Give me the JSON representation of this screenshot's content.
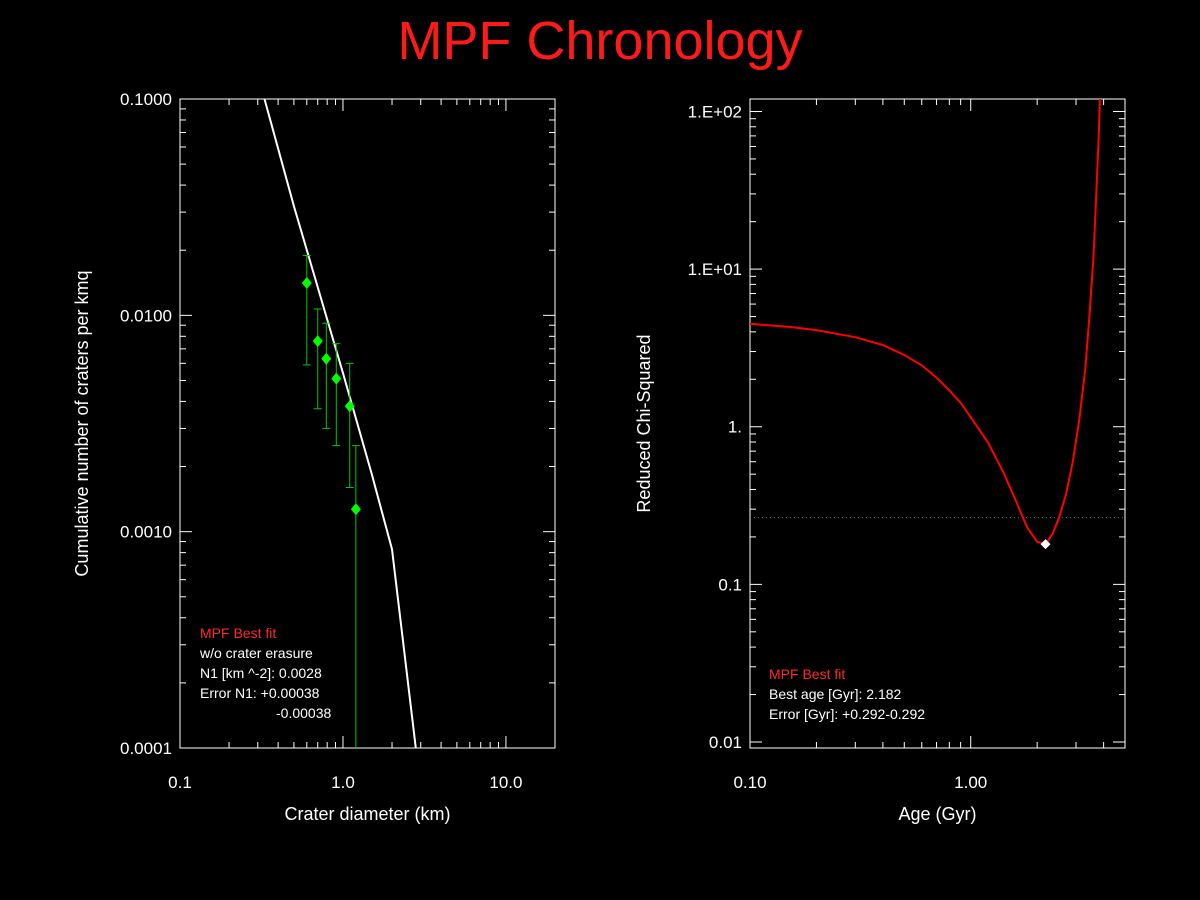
{
  "title": "MPF Chronology",
  "colors": {
    "background": "#000000",
    "title": "#ff1a1a",
    "fit_label": "#ff2a2a",
    "data_points": "#00ff00",
    "error_bars": "#00c800",
    "fit_line": "#ffffff",
    "chi_curve": "#ff0000",
    "minimum_marker": "#ffffff",
    "threshold_line": "#5a7a5a"
  },
  "chart_data": [
    {
      "type": "scatter",
      "xlabel": "Crater diameter (km)",
      "ylabel": "Cumulative number of craters per kmq",
      "x_scale": "log",
      "y_scale": "log",
      "xlim": [
        0.1,
        20
      ],
      "ylim": [
        0.0001,
        0.1
      ],
      "x_ticks": [
        {
          "value": 0.1,
          "label": "0.1"
        },
        {
          "value": 1,
          "label": "1.0"
        },
        {
          "value": 10,
          "label": "10.0"
        }
      ],
      "y_ticks": [
        {
          "value": 0.1,
          "label": "0.1000"
        },
        {
          "value": 0.01,
          "label": "0.0100"
        },
        {
          "value": 0.001,
          "label": "0.0010"
        },
        {
          "value": 0.0001,
          "label": "0.0001"
        }
      ],
      "series": [
        {
          "type": "scatter",
          "points": [
            {
              "x": 0.6,
              "y": 0.0141,
              "y_low": 0.0059,
              "y_high": 0.0189
            },
            {
              "x": 0.7,
              "y": 0.0076,
              "y_low": 0.0037,
              "y_high": 0.0107
            },
            {
              "x": 0.79,
              "y": 0.0063,
              "y_low": 0.003,
              "y_high": 0.0092
            },
            {
              "x": 0.91,
              "y": 0.0051,
              "y_low": 0.0025,
              "y_high": 0.0074
            },
            {
              "x": 1.1,
              "y": 0.0038,
              "y_low": 0.0016,
              "y_high": 0.006
            },
            {
              "x": 1.2,
              "y": 0.00127,
              "y_low": 0.0001,
              "y_high": 0.0025
            }
          ]
        },
        {
          "type": "line",
          "x": [
            0.33,
            0.5,
            0.7,
            1.0,
            1.5,
            2.0,
            2.8
          ],
          "y": [
            0.1,
            0.032,
            0.0135,
            0.0054,
            0.00185,
            0.00083,
            0.0001
          ]
        }
      ],
      "annotation": {
        "heading": "MPF Best fit",
        "lines": [
          "w/o crater erasure",
          "N1 [km ^-2]: 0.0028",
          "Error N1: +0.00038",
          "-0.00038"
        ]
      }
    },
    {
      "type": "line",
      "xlabel": "Age (Gyr)",
      "ylabel": "Reduced Chi-Squared",
      "x_scale": "log",
      "y_scale": "log",
      "xlim": [
        0.1,
        5
      ],
      "ylim": [
        0.01,
        120
      ],
      "x_ticks": [
        {
          "value": 0.1,
          "label": "0.10"
        },
        {
          "value": 1,
          "label": "1.00"
        }
      ],
      "y_ticks": [
        {
          "value": 100,
          "label": "1.E+02"
        },
        {
          "value": 10,
          "label": "1.E+01"
        },
        {
          "value": 1,
          "label": "1."
        },
        {
          "value": 0.1,
          "label": "0.1"
        },
        {
          "value": 0.01,
          "label": "0.01"
        }
      ],
      "series": [
        {
          "type": "line",
          "x": [
            0.1,
            0.15,
            0.2,
            0.3,
            0.4,
            0.5,
            0.6,
            0.7,
            0.8,
            0.9,
            1.0,
            1.2,
            1.4,
            1.6,
            1.8,
            2.0,
            2.182,
            2.35,
            2.5,
            2.7,
            2.9,
            3.1,
            3.3,
            3.45,
            3.6,
            3.7,
            3.8,
            3.85
          ],
          "y": [
            4.5,
            4.3,
            4.1,
            3.7,
            3.3,
            2.85,
            2.45,
            2.05,
            1.7,
            1.42,
            1.15,
            0.79,
            0.52,
            0.34,
            0.23,
            0.186,
            0.18,
            0.21,
            0.26,
            0.37,
            0.6,
            1.1,
            2.3,
            5.0,
            12,
            28,
            70,
            120
          ]
        }
      ],
      "best_fit_point": {
        "x": 2.182,
        "y": 0.18
      },
      "threshold_y": 0.265,
      "annotation": {
        "heading": "MPF Best fit",
        "lines": [
          "Best age [Gyr]: 2.182",
          "Error [Gyr]: +0.292-0.292"
        ]
      }
    }
  ]
}
